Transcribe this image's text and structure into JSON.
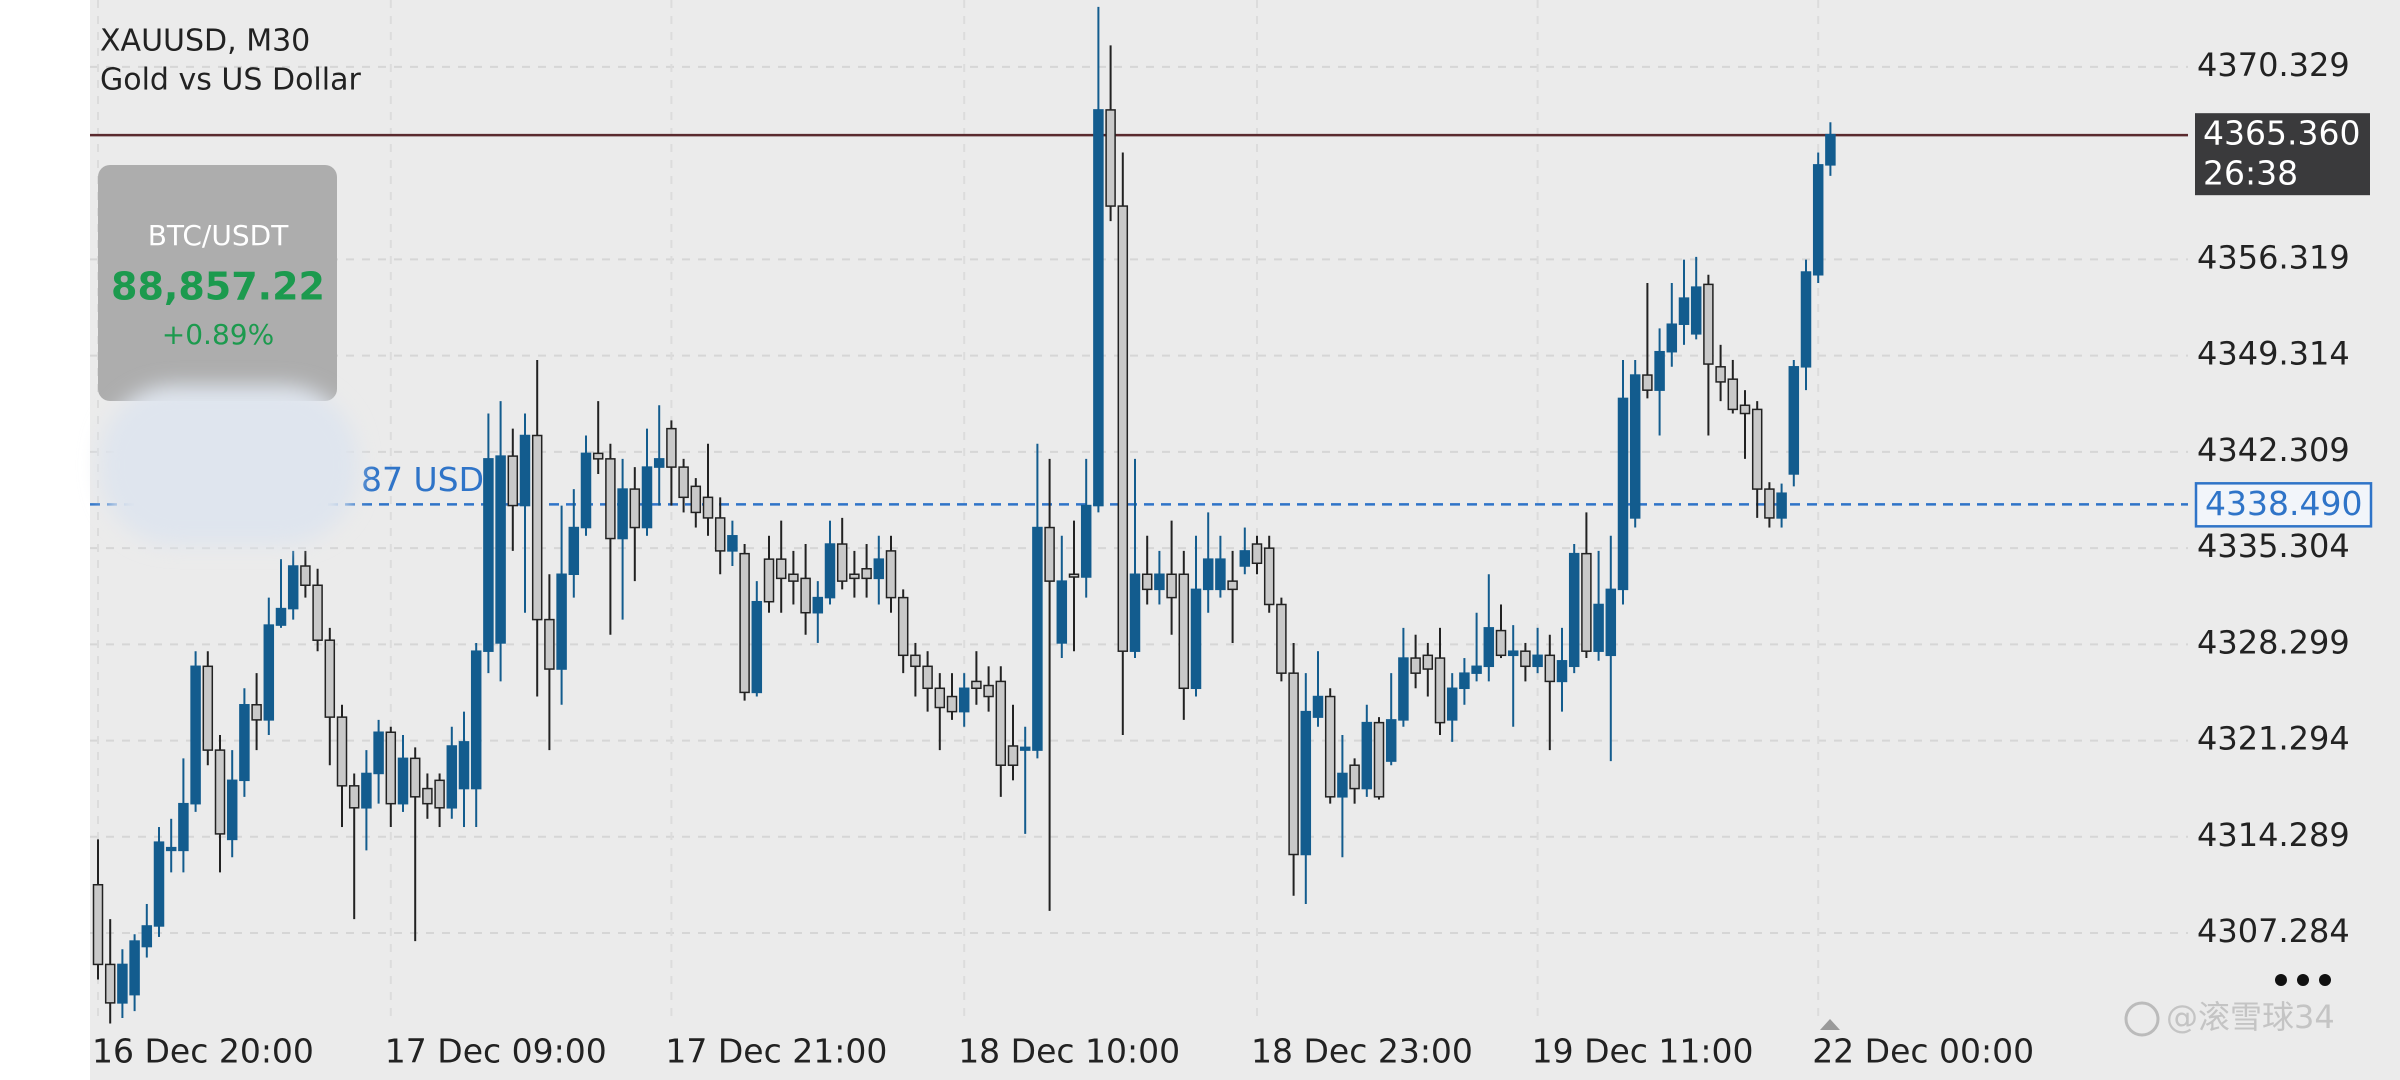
{
  "chart_data": {
    "type": "candlestick",
    "title": "XAUUSD, M30",
    "subtitle": "Gold vs US Dollar",
    "categories": [
      "16 Dec 20:00",
      null,
      null,
      null,
      null,
      null,
      null,
      null,
      null,
      null,
      null,
      null,
      null,
      null,
      null,
      null,
      null,
      null,
      null,
      null,
      null,
      null,
      null,
      null,
      "17 Dec 09:00",
      null,
      null,
      null,
      null,
      null,
      null,
      null,
      null,
      null,
      null,
      null,
      null,
      null,
      null,
      null,
      null,
      null,
      null,
      null,
      null,
      null,
      null,
      "17 Dec 21:00",
      null,
      null,
      null,
      null,
      null,
      null,
      null,
      null,
      null,
      null,
      null,
      null,
      null,
      null,
      null,
      null,
      null,
      null,
      null,
      null,
      null,
      null,
      null,
      "18 Dec 10:00",
      null,
      null,
      null,
      null,
      null,
      null,
      null,
      null,
      null,
      null,
      null,
      null,
      null,
      null,
      null,
      null,
      null,
      null,
      null,
      null,
      null,
      null,
      null,
      "18 Dec 23:00",
      null,
      null,
      null,
      null,
      null,
      null,
      null,
      null,
      null,
      null,
      null,
      null,
      null,
      null,
      null,
      null,
      null,
      null,
      null,
      null,
      null,
      null,
      "19 Dec 11:00",
      null,
      null,
      null,
      null,
      null,
      null,
      null,
      null,
      null,
      null,
      null,
      null,
      null,
      null,
      null,
      null,
      null,
      null,
      null,
      null,
      null,
      null,
      "22 Dec 00:00",
      null
    ],
    "open": [
      4310.8,
      4305.0,
      4302.2,
      4302.8,
      4306.3,
      4307.8,
      4313.3,
      4313.3,
      4316.7,
      4326.7,
      4320.6,
      4314.1,
      4318.4,
      4323.9,
      4322.8,
      4329.7,
      4330.9,
      4334.0,
      4332.6,
      4328.6,
      4323.0,
      4318.0,
      4316.4,
      4318.9,
      4321.9,
      4316.7,
      4320.0,
      4317.8,
      4318.4,
      4316.4,
      4317.8,
      4317.8,
      4327.8,
      4328.4,
      4342.0,
      4338.4,
      4343.5,
      4330.1,
      4326.5,
      4333.4,
      4336.8,
      4342.2,
      4341.8,
      4336.0,
      4339.6,
      4336.8,
      4341.2,
      4344.0,
      4341.2,
      4339.8,
      4339.0,
      4337.5,
      4335.1,
      4334.9,
      4324.8,
      4334.5,
      4334.5,
      4333.4,
      4333.1,
      4330.6,
      4331.7,
      4335.6,
      4333.4,
      4333.8,
      4333.1,
      4335.1,
      4331.7,
      4327.5,
      4326.7,
      4325.1,
      4324.5,
      4323.4,
      4325.6,
      4325.3,
      4325.6,
      4320.9,
      4320.6,
      4320.6,
      4336.8,
      4328.4,
      4333.4,
      4333.2,
      4338.4,
      4367.2,
      4360.2,
      4327.8,
      4333.4,
      4332.3,
      4333.4,
      4333.4,
      4325.1,
      4332.3,
      4332.3,
      4332.9,
      4334.0,
      4335.6,
      4335.3,
      4331.2,
      4326.2,
      4313.0,
      4323.0,
      4324.5,
      4317.2,
      4319.5,
      4317.8,
      4322.6,
      4319.8,
      4322.8,
      4327.3,
      4327.5,
      4327.3,
      4322.8,
      4325.1,
      4326.2,
      4326.7,
      4329.3,
      4327.5,
      4327.8,
      4326.7,
      4327.5,
      4325.6,
      4326.7,
      4334.9,
      4327.8,
      4327.5,
      4332.3,
      4337.5,
      4347.9,
      4346.8,
      4349.6,
      4351.6,
      4350.9,
      4354.5,
      4348.5,
      4347.6,
      4345.7,
      4345.4,
      4339.6,
      4337.5,
      4340.7,
      4348.5,
      4355.2,
      4363.2
    ],
    "high": [
      4314.1,
      4308.3,
      4306.1,
      4307.2,
      4309.4,
      4315.0,
      4315.6,
      4320.0,
      4327.8,
      4327.8,
      4321.7,
      4320.6,
      4325.1,
      4326.2,
      4331.7,
      4334.5,
      4335.1,
      4335.1,
      4333.8,
      4329.5,
      4323.9,
      4318.9,
      4320.6,
      4322.8,
      4322.3,
      4321.7,
      4320.8,
      4318.9,
      4318.9,
      4322.3,
      4323.4,
      4328.4,
      4345.1,
      4346.0,
      4344.0,
      4345.1,
      4349.0,
      4333.4,
      4338.4,
      4339.6,
      4343.5,
      4346.0,
      4342.9,
      4341.8,
      4341.2,
      4344.0,
      4345.7,
      4344.6,
      4341.8,
      4340.4,
      4342.9,
      4339.0,
      4337.3,
      4335.6,
      4332.9,
      4336.2,
      4337.3,
      4335.1,
      4335.6,
      4332.9,
      4337.3,
      4337.5,
      4335.1,
      4335.6,
      4336.2,
      4336.2,
      4332.3,
      4328.4,
      4327.8,
      4326.2,
      4326.2,
      4326.2,
      4327.8,
      4326.7,
      4326.7,
      4323.9,
      4322.3,
      4342.9,
      4341.8,
      4336.2,
      4337.3,
      4341.8,
      4374.7,
      4371.9,
      4364.1,
      4341.8,
      4336.2,
      4335.1,
      4337.3,
      4335.1,
      4336.2,
      4337.9,
      4336.2,
      4335.1,
      4336.8,
      4336.2,
      4336.2,
      4331.7,
      4328.4,
      4326.2,
      4327.8,
      4325.1,
      4321.7,
      4320.0,
      4323.9,
      4323.0,
      4326.2,
      4329.5,
      4329.0,
      4328.4,
      4329.5,
      4326.2,
      4327.3,
      4330.6,
      4333.4,
      4331.2,
      4329.7,
      4328.4,
      4329.5,
      4329.0,
      4329.5,
      4335.6,
      4337.9,
      4335.1,
      4336.2,
      4349.0,
      4349.0,
      4354.6,
      4351.3,
      4354.6,
      4356.3,
      4356.5,
      4355.2,
      4350.1,
      4349.0,
      4346.8,
      4346.0,
      4340.1,
      4340.0,
      4349.0,
      4356.3,
      4364.1,
      4366.3
    ],
    "low": [
      4303.9,
      4300.7,
      4301.1,
      4301.6,
      4305.5,
      4307.0,
      4311.7,
      4311.7,
      4316.1,
      4319.5,
      4311.7,
      4312.8,
      4317.2,
      4320.6,
      4321.7,
      4329.5,
      4330.1,
      4331.7,
      4327.8,
      4319.5,
      4315.0,
      4308.3,
      4313.3,
      4316.7,
      4315.0,
      4316.1,
      4306.7,
      4315.6,
      4315.0,
      4315.6,
      4315.0,
      4315.0,
      4326.2,
      4325.6,
      4335.1,
      4330.6,
      4324.5,
      4320.6,
      4323.9,
      4331.7,
      4336.2,
      4340.7,
      4329.0,
      4330.1,
      4332.9,
      4336.2,
      4338.4,
      4338.4,
      4337.9,
      4336.8,
      4336.2,
      4333.4,
      4334.0,
      4324.2,
      4324.5,
      4330.6,
      4330.6,
      4331.2,
      4329.0,
      4328.4,
      4331.2,
      4332.3,
      4331.7,
      4331.7,
      4331.2,
      4330.6,
      4326.2,
      4324.5,
      4323.4,
      4320.6,
      4322.8,
      4322.3,
      4323.9,
      4323.4,
      4317.2,
      4318.4,
      4314.5,
      4320.0,
      4308.9,
      4327.3,
      4327.8,
      4331.7,
      4337.9,
      4359.1,
      4321.7,
      4327.3,
      4331.2,
      4331.2,
      4329.0,
      4322.8,
      4324.5,
      4330.6,
      4331.7,
      4328.4,
      4333.4,
      4333.4,
      4330.6,
      4325.6,
      4310.0,
      4309.4,
      4322.3,
      4316.7,
      4312.8,
      4316.7,
      4317.2,
      4317.0,
      4319.5,
      4322.3,
      4325.1,
      4324.5,
      4321.7,
      4321.2,
      4323.9,
      4325.6,
      4325.6,
      4327.3,
      4322.3,
      4325.6,
      4326.2,
      4320.6,
      4323.4,
      4326.2,
      4327.3,
      4327.1,
      4319.8,
      4331.2,
      4336.8,
      4346.2,
      4343.5,
      4348.5,
      4350.1,
      4350.5,
      4343.5,
      4346.0,
      4345.1,
      4341.8,
      4337.5,
      4336.8,
      4336.8,
      4339.8,
      4346.8,
      4354.6,
      4362.4
    ],
    "close": [
      4305.0,
      4302.2,
      4305.0,
      4306.7,
      4307.8,
      4313.9,
      4313.5,
      4316.7,
      4326.7,
      4320.6,
      4314.5,
      4318.4,
      4323.9,
      4322.8,
      4329.7,
      4330.9,
      4334.0,
      4332.6,
      4328.6,
      4323.0,
      4318.0,
      4316.4,
      4318.9,
      4321.9,
      4316.7,
      4320.0,
      4317.2,
      4316.7,
      4316.4,
      4320.9,
      4321.2,
      4327.8,
      4341.8,
      4342.0,
      4338.4,
      4343.5,
      4330.1,
      4326.5,
      4333.4,
      4336.8,
      4342.2,
      4341.8,
      4336.0,
      4339.6,
      4336.8,
      4341.2,
      4341.8,
      4341.2,
      4339.0,
      4337.9,
      4337.5,
      4335.1,
      4336.2,
      4324.8,
      4331.4,
      4331.4,
      4333.1,
      4332.9,
      4330.6,
      4331.7,
      4335.6,
      4332.9,
      4333.1,
      4333.1,
      4334.5,
      4331.7,
      4327.5,
      4326.7,
      4325.1,
      4323.7,
      4323.4,
      4325.1,
      4325.1,
      4324.5,
      4319.5,
      4319.5,
      4320.8,
      4336.8,
      4332.9,
      4332.9,
      4333.2,
      4338.4,
      4367.2,
      4360.2,
      4327.8,
      4333.4,
      4332.3,
      4333.4,
      4331.7,
      4325.1,
      4332.3,
      4334.5,
      4334.5,
      4332.3,
      4335.1,
      4334.2,
      4331.2,
      4326.2,
      4313.0,
      4323.4,
      4324.5,
      4317.2,
      4318.9,
      4317.8,
      4322.6,
      4317.2,
      4322.8,
      4327.3,
      4326.2,
      4326.5,
      4322.6,
      4325.1,
      4326.2,
      4326.7,
      4329.5,
      4327.5,
      4327.8,
      4326.7,
      4327.5,
      4325.6,
      4327.1,
      4334.9,
      4327.8,
      4331.2,
      4332.3,
      4346.2,
      4347.9,
      4346.8,
      4349.6,
      4351.6,
      4353.5,
      4354.3,
      4348.7,
      4347.4,
      4345.4,
      4345.1,
      4339.6,
      4337.5,
      4339.3,
      4348.5,
      4355.4,
      4363.2,
      4365.4
    ],
    "up_color": "#135c8e",
    "down_color": "#c9c9c9",
    "ylim": [
      4301.1,
      4375.2
    ],
    "yticks": [
      4307.284,
      4314.289,
      4321.294,
      4328.299,
      4335.304,
      4342.309,
      4349.314,
      4356.319,
      4370.329
    ],
    "grid": true,
    "current_price": {
      "value": 4365.36,
      "label": "4365.360",
      "countdown": "26:38",
      "color": "#5a2a2e"
    },
    "alert_line": {
      "value": 4338.49,
      "label": "4338.490",
      "note": "87 USD",
      "color": "#2f74c8"
    }
  },
  "widget": {
    "symbol": "BTC/USDT",
    "price": "88,857.22",
    "change": "+0.89%"
  },
  "watermark": "@滚雪球34"
}
